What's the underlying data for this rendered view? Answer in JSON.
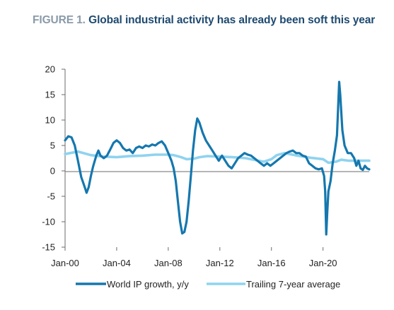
{
  "figure": {
    "number": "FIGURE 1.",
    "title": "Global industrial activity has already been soft this year"
  },
  "chart_data": {
    "type": "line",
    "ylim": [
      -15,
      20
    ],
    "y_ticks": [
      20,
      15,
      10,
      5,
      0,
      -5,
      -10,
      -15
    ],
    "x_range": [
      "2000-01",
      "2023-08"
    ],
    "x_tick_labels": [
      "Jan-00",
      "Jan-04",
      "Jan-08",
      "Jan-12",
      "Jan-16",
      "Jan-20"
    ],
    "x_tick_dates": [
      "2000-01",
      "2004-01",
      "2008-01",
      "2012-01",
      "2016-01",
      "2020-01"
    ],
    "legend_position": "bottom",
    "grid": false,
    "series": [
      {
        "name": "World IP growth, y/y",
        "color": "#1577ae",
        "points": [
          [
            "2000-01",
            6.0
          ],
          [
            "2000-04",
            6.8
          ],
          [
            "2000-07",
            6.6
          ],
          [
            "2000-10",
            5.0
          ],
          [
            "2001-01",
            2.0
          ],
          [
            "2001-04",
            -1.2
          ],
          [
            "2001-07",
            -3.0
          ],
          [
            "2001-09",
            -4.3
          ],
          [
            "2001-11",
            -3.2
          ],
          [
            "2002-01",
            -1.0
          ],
          [
            "2002-03",
            0.8
          ],
          [
            "2002-06",
            3.0
          ],
          [
            "2002-08",
            4.0
          ],
          [
            "2002-10",
            3.0
          ],
          [
            "2003-01",
            2.5
          ],
          [
            "2003-04",
            3.0
          ],
          [
            "2003-07",
            4.2
          ],
          [
            "2003-10",
            5.5
          ],
          [
            "2004-01",
            6.0
          ],
          [
            "2004-04",
            5.5
          ],
          [
            "2004-07",
            4.5
          ],
          [
            "2004-10",
            4.0
          ],
          [
            "2005-01",
            4.2
          ],
          [
            "2005-04",
            3.5
          ],
          [
            "2005-07",
            4.5
          ],
          [
            "2005-10",
            4.8
          ],
          [
            "2006-01",
            4.5
          ],
          [
            "2006-04",
            5.0
          ],
          [
            "2006-07",
            4.8
          ],
          [
            "2006-10",
            5.2
          ],
          [
            "2007-01",
            5.0
          ],
          [
            "2007-04",
            5.5
          ],
          [
            "2007-07",
            5.8
          ],
          [
            "2007-10",
            5.0
          ],
          [
            "2008-01",
            3.5
          ],
          [
            "2008-04",
            2.0
          ],
          [
            "2008-06",
            0.5
          ],
          [
            "2008-08",
            -2.0
          ],
          [
            "2008-10",
            -6.0
          ],
          [
            "2008-12",
            -10.0
          ],
          [
            "2009-02",
            -12.3
          ],
          [
            "2009-04",
            -12.0
          ],
          [
            "2009-06",
            -10.0
          ],
          [
            "2009-08",
            -6.0
          ],
          [
            "2009-10",
            -1.0
          ],
          [
            "2009-12",
            4.0
          ],
          [
            "2010-02",
            8.0
          ],
          [
            "2010-04",
            10.3
          ],
          [
            "2010-06",
            9.5
          ],
          [
            "2010-09",
            7.5
          ],
          [
            "2010-12",
            6.0
          ],
          [
            "2011-03",
            5.0
          ],
          [
            "2011-06",
            4.0
          ],
          [
            "2011-09",
            3.0
          ],
          [
            "2011-12",
            2.0
          ],
          [
            "2012-03",
            3.0
          ],
          [
            "2012-06",
            2.0
          ],
          [
            "2012-09",
            1.0
          ],
          [
            "2012-12",
            0.5
          ],
          [
            "2013-03",
            1.5
          ],
          [
            "2013-06",
            2.5
          ],
          [
            "2013-09",
            3.0
          ],
          [
            "2013-12",
            3.5
          ],
          [
            "2014-03",
            3.2
          ],
          [
            "2014-06",
            3.0
          ],
          [
            "2014-09",
            2.5
          ],
          [
            "2014-12",
            2.0
          ],
          [
            "2015-03",
            1.5
          ],
          [
            "2015-06",
            1.0
          ],
          [
            "2015-09",
            1.5
          ],
          [
            "2015-12",
            1.0
          ],
          [
            "2016-03",
            1.5
          ],
          [
            "2016-06",
            2.0
          ],
          [
            "2016-09",
            2.5
          ],
          [
            "2016-12",
            3.0
          ],
          [
            "2017-03",
            3.5
          ],
          [
            "2017-06",
            3.8
          ],
          [
            "2017-09",
            4.0
          ],
          [
            "2017-12",
            3.5
          ],
          [
            "2018-03",
            3.5
          ],
          [
            "2018-06",
            3.0
          ],
          [
            "2018-09",
            2.8
          ],
          [
            "2018-12",
            1.5
          ],
          [
            "2019-03",
            1.0
          ],
          [
            "2019-06",
            0.5
          ],
          [
            "2019-09",
            0.3
          ],
          [
            "2019-12",
            0.5
          ],
          [
            "2020-02",
            -1.0
          ],
          [
            "2020-03",
            -4.0
          ],
          [
            "2020-04",
            -12.5
          ],
          [
            "2020-05",
            -8.0
          ],
          [
            "2020-06",
            -4.0
          ],
          [
            "2020-08",
            -2.0
          ],
          [
            "2020-10",
            1.5
          ],
          [
            "2020-12",
            4.0
          ],
          [
            "2021-02",
            7.0
          ],
          [
            "2021-04",
            17.5
          ],
          [
            "2021-05",
            15.0
          ],
          [
            "2021-07",
            8.0
          ],
          [
            "2021-09",
            5.0
          ],
          [
            "2021-12",
            3.5
          ],
          [
            "2022-03",
            3.5
          ],
          [
            "2022-06",
            2.5
          ],
          [
            "2022-08",
            1.0
          ],
          [
            "2022-10",
            2.0
          ],
          [
            "2022-12",
            0.5
          ],
          [
            "2023-02",
            0.2
          ],
          [
            "2023-04",
            1.0
          ],
          [
            "2023-06",
            0.5
          ],
          [
            "2023-08",
            0.3
          ]
        ]
      },
      {
        "name": "Trailing 7-year average",
        "color": "#8fd3ef",
        "points": [
          [
            "2000-01",
            3.3
          ],
          [
            "2001-01",
            3.8
          ],
          [
            "2002-01",
            3.1
          ],
          [
            "2003-01",
            2.8
          ],
          [
            "2004-01",
            2.7
          ],
          [
            "2005-01",
            2.9
          ],
          [
            "2006-01",
            3.0
          ],
          [
            "2007-01",
            3.2
          ],
          [
            "2008-01",
            3.2
          ],
          [
            "2008-06",
            3.1
          ],
          [
            "2009-01",
            2.7
          ],
          [
            "2009-06",
            2.3
          ],
          [
            "2010-01",
            2.4
          ],
          [
            "2010-06",
            2.7
          ],
          [
            "2011-01",
            2.9
          ],
          [
            "2012-01",
            2.8
          ],
          [
            "2013-01",
            2.7
          ],
          [
            "2014-01",
            2.5
          ],
          [
            "2015-01",
            2.0
          ],
          [
            "2015-06",
            1.8
          ],
          [
            "2016-01",
            2.3
          ],
          [
            "2016-06",
            3.1
          ],
          [
            "2017-01",
            3.5
          ],
          [
            "2017-06",
            3.3
          ],
          [
            "2018-01",
            3.0
          ],
          [
            "2019-01",
            2.6
          ],
          [
            "2020-01",
            2.3
          ],
          [
            "2020-06",
            1.6
          ],
          [
            "2021-01",
            1.8
          ],
          [
            "2021-06",
            2.2
          ],
          [
            "2022-01",
            2.0
          ],
          [
            "2022-06",
            2.0
          ],
          [
            "2023-01",
            2.0
          ],
          [
            "2023-08",
            2.0
          ]
        ]
      }
    ]
  }
}
